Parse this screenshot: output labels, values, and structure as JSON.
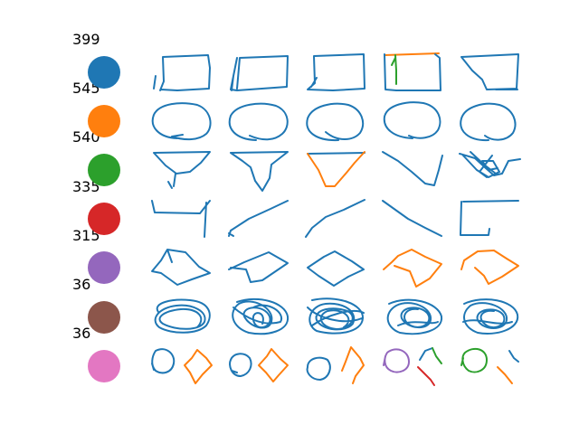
{
  "colors": {
    "blue": "#1f77b4",
    "orange": "#ff7f0e",
    "green": "#2ca02c",
    "red": "#d62728",
    "purple": "#9467bd",
    "brown": "#8c564b",
    "pink": "#e377c2"
  },
  "rows": [
    {
      "count": "399",
      "marker_color": "blue"
    },
    {
      "count": "545",
      "marker_color": "orange"
    },
    {
      "count": "540",
      "marker_color": "green"
    },
    {
      "count": "335",
      "marker_color": "red"
    },
    {
      "count": "315",
      "marker_color": "purple"
    },
    {
      "count": "36",
      "marker_color": "brown"
    },
    {
      "count": "36",
      "marker_color": "pink"
    }
  ]
}
